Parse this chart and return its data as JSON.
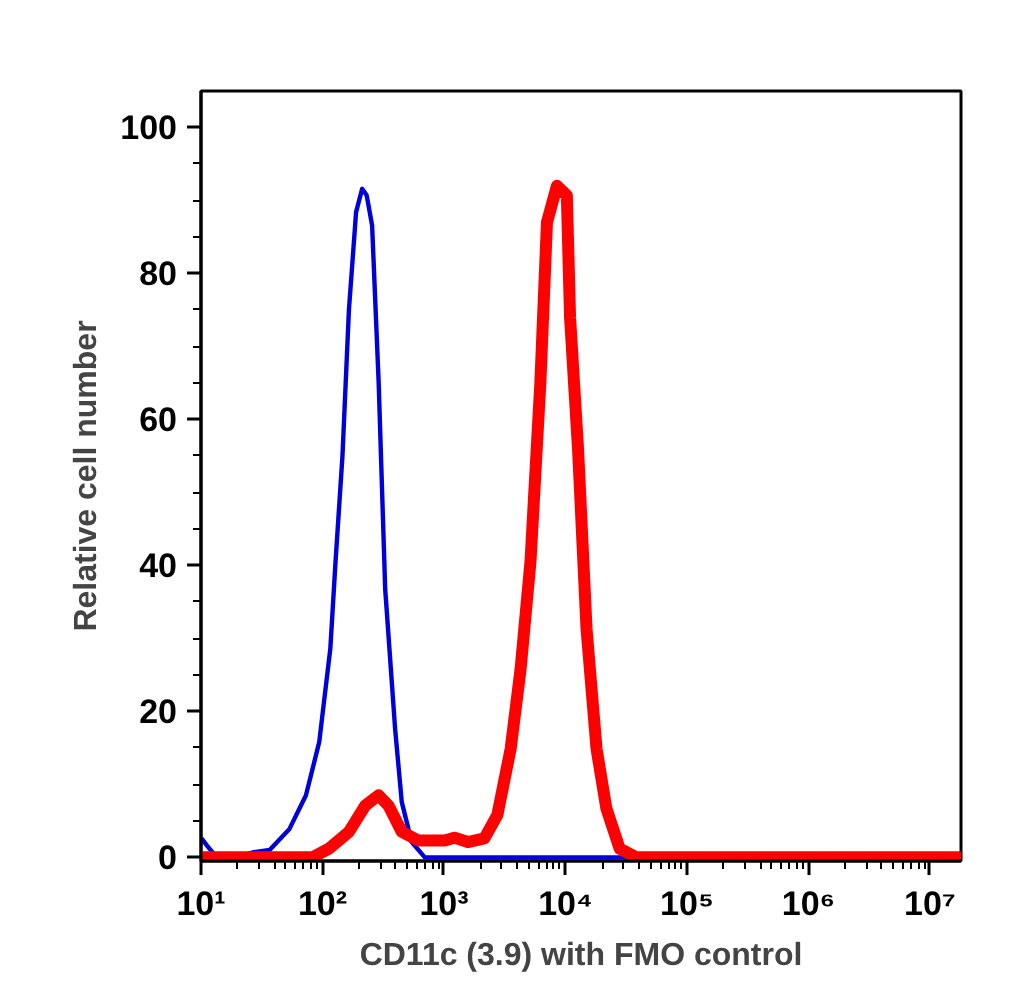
{
  "chart_data": {
    "type": "line",
    "xlabel": "CD11c (3.9) with FMO control",
    "ylabel": "Relative cell number",
    "log": "x",
    "xlim": [
      10,
      18000000
    ],
    "ylim": [
      -0.5,
      105
    ],
    "xticks": [
      {
        "value": 10,
        "label": "10¹"
      },
      {
        "value": 100,
        "label": "10²"
      },
      {
        "value": 1000,
        "label": "10³"
      },
      {
        "value": 10000,
        "label": "10⁴"
      },
      {
        "value": 100000,
        "label": "10⁵"
      },
      {
        "value": 1000000,
        "label": "10⁶"
      },
      {
        "value": 10000000,
        "label": "10⁷"
      }
    ],
    "yticks": [
      0,
      20,
      40,
      60,
      80,
      100
    ],
    "grid": false,
    "series": [
      {
        "color": "#0000dd",
        "x": [
          10.1,
          11.2,
          13.5,
          19.6,
          26.8,
          36.7,
          53.5,
          73.1,
          94,
          116,
          128,
          146,
          165,
          189,
          212,
          231,
          256,
          290,
          328,
          396,
          449,
          542,
          695,
          18000000
        ],
        "values": [
          2.6,
          1.6,
          0,
          0,
          0.7,
          1,
          3.9,
          8.5,
          15.8,
          28.6,
          40.5,
          55,
          75,
          88.4,
          91.6,
          90.7,
          86.6,
          65,
          36.8,
          17.6,
          7.6,
          2.1,
          0,
          0
        ]
      },
      {
        "color": "#ff0000",
        "x": [
          10.1,
          82.8,
          113,
          165,
          225,
          290,
          349,
          449,
          614,
          1010,
          1220,
          1570,
          2150,
          2750,
          3540,
          4270,
          5150,
          6210,
          7040,
          8500,
          10260,
          10900,
          12680,
          14900,
          18000,
          21700,
          27900,
          38200,
          18000000
        ],
        "values": [
          0,
          0,
          1.2,
          3.5,
          7.1,
          8.5,
          7.1,
          3.5,
          2.3,
          2.3,
          2.7,
          2.1,
          2.6,
          5.8,
          14.9,
          25.8,
          40.5,
          65,
          87,
          92,
          90.7,
          74,
          56,
          31.3,
          14.9,
          6.7,
          1.2,
          0,
          0
        ]
      }
    ]
  }
}
